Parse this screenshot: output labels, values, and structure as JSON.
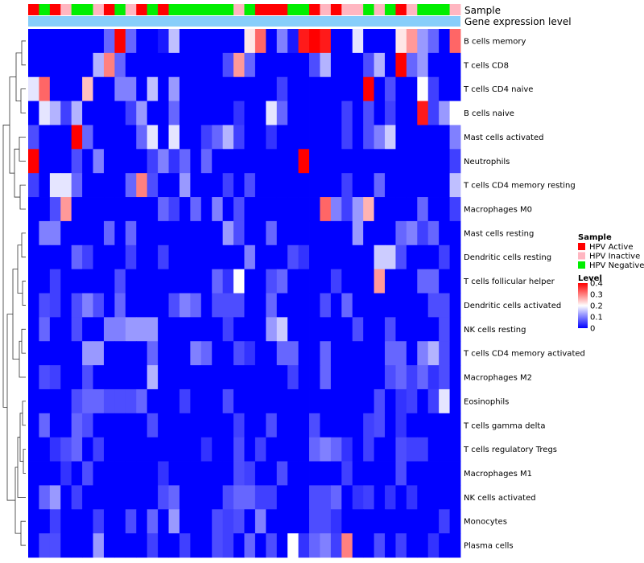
{
  "chart_data": {
    "type": "heatmap",
    "title": "",
    "annotation_tracks": [
      "Sample",
      "Gene expression level"
    ],
    "sample_annotation": [
      "A",
      "N",
      "A",
      "I",
      "N",
      "N",
      "I",
      "A",
      "N",
      "I",
      "A",
      "N",
      "A",
      "N",
      "N",
      "N",
      "N",
      "N",
      "N",
      "I",
      "N",
      "A",
      "A",
      "A",
      "N",
      "N",
      "A",
      "I",
      "A",
      "I",
      "I",
      "N",
      "I",
      "N",
      "A",
      "I",
      "N",
      "N",
      "N",
      "I"
    ],
    "rows": [
      "B cells memory",
      "T cells CD8",
      "T cells CD4 naive",
      "B cells naive",
      "Mast cells activated",
      "Neutrophils",
      "T cells CD4 memory resting",
      "Macrophages M0",
      "Mast cells resting",
      "Dendritic cells resting",
      "T cells follicular helper",
      "Dendritic cells activated",
      "NK cells resting",
      "T cells CD4 memory activated",
      "Macrophages M2",
      "Eosinophils",
      "T cells gamma delta",
      "T cells regulatory  Tregs",
      "Macrophages M1",
      "NK cells activated",
      "Monocytes",
      "Plasma cells"
    ],
    "values": [
      [
        0,
        0,
        0,
        0,
        0,
        0,
        0,
        0.08,
        0.4,
        0.08,
        0,
        0,
        0.02,
        0.15,
        0,
        0,
        0,
        0,
        0,
        0,
        0.22,
        0.32,
        0,
        0.1,
        0.02,
        0.38,
        0.4,
        0.38,
        0,
        0,
        0.18,
        0,
        0,
        0,
        0.22,
        0.28,
        0.12,
        0.08,
        0,
        0.32
      ],
      [
        0,
        0,
        0,
        0,
        0,
        0,
        0.14,
        0.3,
        0.08,
        0,
        0,
        0,
        0,
        0,
        0,
        0,
        0,
        0,
        0.06,
        0.28,
        0.08,
        0,
        0,
        0,
        0,
        0,
        0.06,
        0.14,
        0,
        0,
        0,
        0.06,
        0.14,
        0,
        0.4,
        0.08,
        0.12,
        0,
        0,
        0
      ],
      [
        0.18,
        0.32,
        0,
        0,
        0,
        0.25,
        0,
        0,
        0.1,
        0.1,
        0,
        0.15,
        0,
        0.12,
        0,
        0,
        0,
        0,
        0,
        0,
        0,
        0,
        0,
        0.05,
        0,
        0,
        0,
        0,
        0,
        0,
        0,
        0.4,
        0,
        0.06,
        0,
        0,
        0.2,
        0.05,
        0,
        0
      ],
      [
        0,
        0.18,
        0.14,
        0.05,
        0.14,
        0,
        0,
        0,
        0,
        0.05,
        0.12,
        0,
        0,
        0.08,
        0,
        0,
        0,
        0,
        0,
        0.04,
        0,
        0,
        0.18,
        0.08,
        0,
        0,
        0,
        0,
        0,
        0.05,
        0,
        0.06,
        0,
        0.05,
        0,
        0,
        0.38,
        0.05,
        0.12,
        0.2
      ],
      [
        0.06,
        0,
        0,
        0,
        0.4,
        0.08,
        0,
        0,
        0,
        0,
        0.08,
        0.18,
        0,
        0.18,
        0,
        0,
        0.05,
        0.08,
        0.14,
        0.05,
        0,
        0,
        0.04,
        0,
        0,
        0,
        0,
        0,
        0,
        0.05,
        0,
        0.06,
        0.1,
        0.16,
        0,
        0,
        0,
        0,
        0,
        0.1
      ],
      [
        0.4,
        0,
        0,
        0,
        0.06,
        0,
        0.1,
        0,
        0,
        0,
        0,
        0.05,
        0.1,
        0.04,
        0.08,
        0,
        0.08,
        0,
        0,
        0,
        0,
        0,
        0,
        0,
        0,
        0.4,
        0,
        0,
        0,
        0,
        0,
        0,
        0,
        0,
        0,
        0,
        0,
        0,
        0,
        0.05
      ],
      [
        0.05,
        0,
        0.18,
        0.18,
        0.08,
        0,
        0,
        0,
        0,
        0.08,
        0.3,
        0.06,
        0,
        0,
        0.12,
        0,
        0,
        0,
        0.05,
        0,
        0.06,
        0,
        0,
        0,
        0,
        0,
        0,
        0,
        0,
        0.05,
        0,
        0,
        0.08,
        0,
        0,
        0,
        0,
        0,
        0,
        0.15
      ],
      [
        0,
        0,
        0.06,
        0.28,
        0,
        0,
        0,
        0,
        0,
        0,
        0,
        0,
        0.08,
        0.05,
        0,
        0.08,
        0,
        0.1,
        0,
        0.06,
        0,
        0,
        0,
        0,
        0,
        0,
        0,
        0.32,
        0.1,
        0.05,
        0.12,
        0.26,
        0,
        0,
        0,
        0,
        0.08,
        0,
        0,
        0.05
      ],
      [
        0,
        0.1,
        0.1,
        0,
        0,
        0,
        0,
        0.08,
        0,
        0.08,
        0,
        0,
        0,
        0,
        0,
        0,
        0,
        0,
        0.12,
        0.06,
        0,
        0,
        0.08,
        0,
        0,
        0,
        0,
        0,
        0,
        0,
        0.12,
        0,
        0,
        0,
        0.08,
        0.1,
        0.05,
        0.08,
        0,
        0
      ],
      [
        0,
        0,
        0,
        0,
        0.08,
        0.05,
        0,
        0,
        0,
        0.05,
        0,
        0,
        0.05,
        0,
        0,
        0,
        0,
        0,
        0,
        0,
        0.1,
        0,
        0,
        0,
        0.06,
        0.04,
        0,
        0,
        0,
        0,
        0,
        0,
        0.16,
        0.16,
        0.06,
        0,
        0,
        0,
        0.05,
        0
      ],
      [
        0,
        0,
        0.05,
        0,
        0,
        0,
        0,
        0,
        0.06,
        0,
        0,
        0,
        0,
        0,
        0,
        0,
        0,
        0.08,
        0.04,
        0.2,
        0,
        0,
        0.06,
        0.08,
        0,
        0,
        0,
        0,
        0.05,
        0,
        0,
        0,
        0.28,
        0,
        0,
        0,
        0.08,
        0.08,
        0,
        0
      ],
      [
        0,
        0.06,
        0.05,
        0,
        0.06,
        0.1,
        0.06,
        0,
        0.08,
        0,
        0,
        0,
        0,
        0.06,
        0.1,
        0.08,
        0,
        0.06,
        0.06,
        0.06,
        0,
        0,
        0.08,
        0,
        0,
        0,
        0,
        0.06,
        0,
        0.08,
        0,
        0,
        0,
        0,
        0,
        0,
        0,
        0.06,
        0.06,
        0
      ],
      [
        0,
        0.08,
        0,
        0,
        0.06,
        0,
        0,
        0.1,
        0.1,
        0.12,
        0.12,
        0.12,
        0,
        0,
        0,
        0,
        0,
        0,
        0.05,
        0,
        0,
        0,
        0.12,
        0.16,
        0,
        0,
        0,
        0,
        0,
        0,
        0.06,
        0,
        0,
        0.06,
        0,
        0,
        0,
        0,
        0.06,
        0
      ],
      [
        0,
        0,
        0,
        0,
        0,
        0.12,
        0.12,
        0,
        0,
        0,
        0,
        0.08,
        0,
        0,
        0,
        0.1,
        0.08,
        0,
        0,
        0.06,
        0.04,
        0,
        0,
        0.08,
        0.08,
        0,
        0,
        0.08,
        0,
        0,
        0,
        0,
        0,
        0.08,
        0.08,
        0,
        0.1,
        0.14,
        0.06,
        0
      ],
      [
        0,
        0.06,
        0.05,
        0,
        0,
        0.06,
        0,
        0,
        0,
        0,
        0,
        0.14,
        0,
        0,
        0,
        0,
        0,
        0,
        0,
        0,
        0,
        0,
        0,
        0,
        0.05,
        0,
        0,
        0.08,
        0,
        0,
        0,
        0,
        0,
        0.06,
        0.08,
        0.05,
        0.08,
        0.04,
        0.06,
        0
      ],
      [
        0,
        0,
        0,
        0,
        0.06,
        0.08,
        0.08,
        0.06,
        0.06,
        0.06,
        0.08,
        0,
        0,
        0,
        0.05,
        0,
        0,
        0,
        0.06,
        0,
        0,
        0,
        0,
        0,
        0,
        0,
        0,
        0,
        0,
        0,
        0,
        0,
        0.06,
        0,
        0.04,
        0.05,
        0,
        0.05,
        0.18,
        0
      ],
      [
        0,
        0.08,
        0,
        0,
        0.08,
        0.06,
        0,
        0,
        0,
        0,
        0,
        0.06,
        0,
        0,
        0,
        0,
        0,
        0,
        0,
        0.05,
        0,
        0,
        0.06,
        0,
        0,
        0,
        0.06,
        0,
        0,
        0,
        0,
        0.05,
        0.06,
        0,
        0.04,
        0,
        0,
        0,
        0,
        0
      ],
      [
        0,
        0,
        0.04,
        0.06,
        0.08,
        0,
        0.05,
        0,
        0,
        0,
        0,
        0,
        0,
        0,
        0,
        0,
        0.04,
        0,
        0,
        0.06,
        0,
        0.05,
        0,
        0,
        0,
        0,
        0.08,
        0.1,
        0.08,
        0.04,
        0,
        0.05,
        0,
        0,
        0.06,
        0.05,
        0.05,
        0,
        0,
        0
      ],
      [
        0,
        0,
        0,
        0.04,
        0,
        0.06,
        0,
        0,
        0,
        0,
        0,
        0,
        0.04,
        0,
        0,
        0,
        0,
        0,
        0,
        0.06,
        0.05,
        0,
        0,
        0.06,
        0,
        0,
        0,
        0,
        0,
        0.05,
        0,
        0,
        0,
        0,
        0.06,
        0,
        0,
        0,
        0,
        0
      ],
      [
        0,
        0.08,
        0.12,
        0,
        0.05,
        0,
        0,
        0,
        0,
        0,
        0,
        0,
        0.06,
        0.08,
        0,
        0,
        0,
        0,
        0.06,
        0.08,
        0.08,
        0.05,
        0.05,
        0,
        0,
        0,
        0.06,
        0.06,
        0.08,
        0,
        0.04,
        0.05,
        0,
        0.04,
        0,
        0.04,
        0,
        0,
        0,
        0
      ],
      [
        0,
        0,
        0.05,
        0,
        0,
        0,
        0.05,
        0,
        0,
        0.06,
        0,
        0.08,
        0,
        0.12,
        0,
        0,
        0,
        0.06,
        0.05,
        0.06,
        0,
        0.1,
        0,
        0,
        0,
        0,
        0.06,
        0.06,
        0.04,
        0,
        0,
        0,
        0,
        0,
        0,
        0,
        0,
        0,
        0.05,
        0
      ],
      [
        0,
        0.06,
        0.06,
        0,
        0,
        0,
        0.12,
        0,
        0,
        0,
        0,
        0.05,
        0,
        0,
        0.05,
        0,
        0,
        0.06,
        0.05,
        0,
        0.08,
        0,
        0.06,
        0,
        0.2,
        0.04,
        0.08,
        0.1,
        0.05,
        0.3,
        0,
        0,
        0.06,
        0,
        0.05,
        0,
        0,
        0.04,
        0,
        0
      ]
    ],
    "color_scale": {
      "min": 0,
      "max": 0.4,
      "low": "#0000FF",
      "mid": "#FFFFFF",
      "high": "#FF0000",
      "mid_value": 0.2
    },
    "legend": {
      "sample_title": "Sample",
      "sample_items": [
        {
          "label": "HPV Active",
          "color": "#FF0000"
        },
        {
          "label": "HPV Inactive",
          "color": "#FFB6C1"
        },
        {
          "label": "HPV Negative",
          "color": "#00EE00"
        }
      ],
      "level_title": "Level",
      "level_ticks": [
        "0.4",
        "0.3",
        "0.2",
        "0.1",
        "0"
      ],
      "level_tick_values": [
        0.4,
        0.3,
        0.2,
        0.1,
        0
      ],
      "placement": "right"
    },
    "annotation_colors": {
      "A": "#FF0000",
      "I": "#FFB6C1",
      "N": "#00EE00",
      "expression": "#87CEFA"
    },
    "grid": false
  }
}
